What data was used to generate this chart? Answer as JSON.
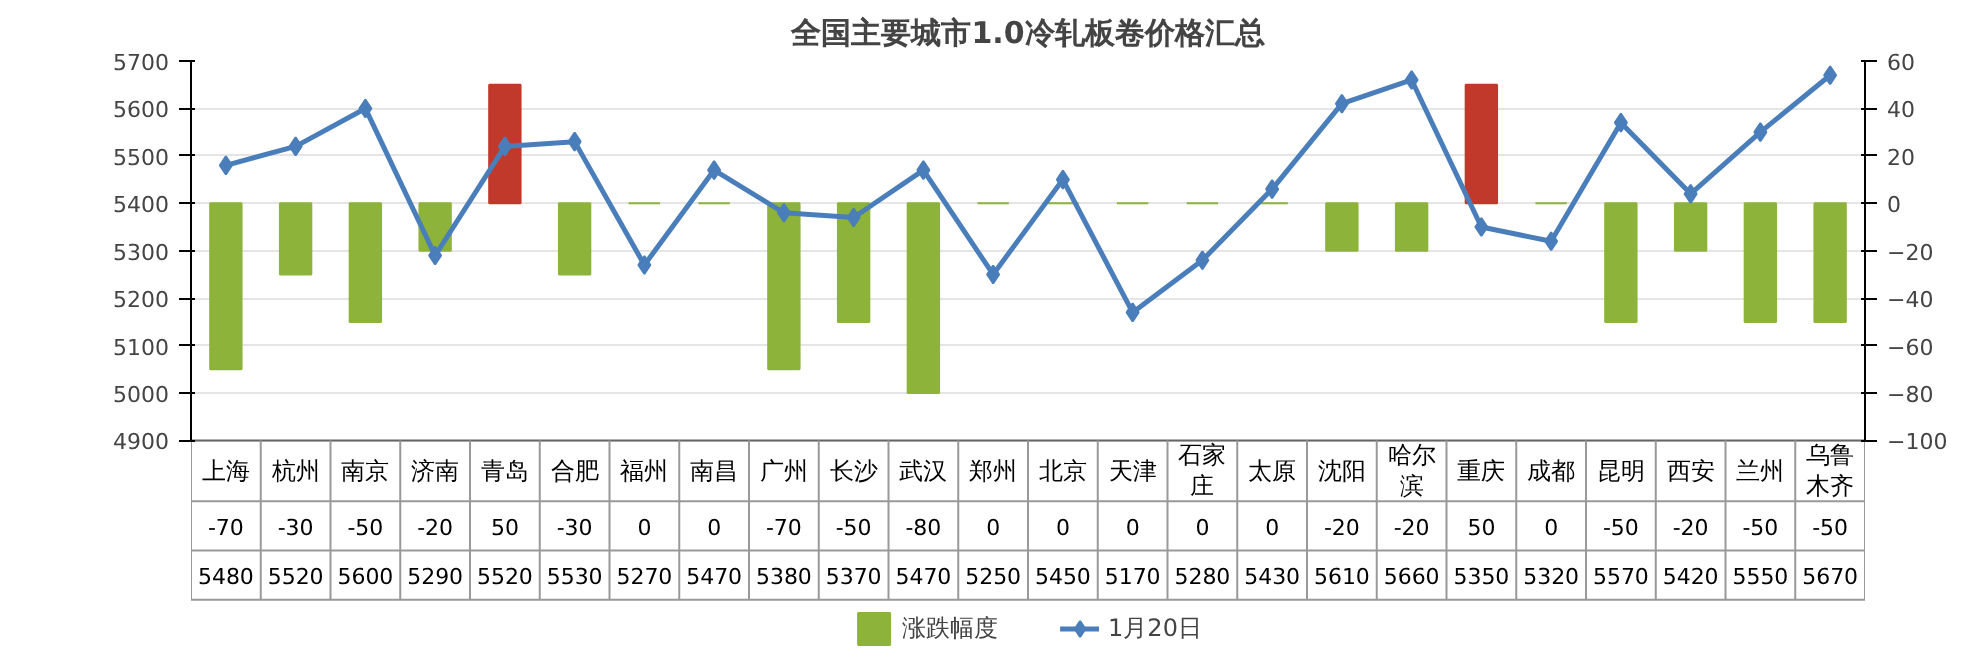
{
  "chart_data": {
    "type": "bar",
    "title": "全国主要城市1.0冷轧板卷价格汇总",
    "categories": [
      "上海",
      "杭州",
      "南京",
      "济南",
      "青岛",
      "合肥",
      "福州",
      "南昌",
      "广州",
      "长沙",
      "武汉",
      "郑州",
      "北京",
      "天津",
      "石家庄",
      "太原",
      "沈阳",
      "哈尔滨",
      "重庆",
      "成都",
      "昆明",
      "西安",
      "兰州",
      "乌鲁木齐"
    ],
    "series": [
      {
        "name": "涨跌幅度",
        "axis": "y2",
        "colors": [
          "#8db33a",
          "#8db33a",
          "#8db33a",
          "#8db33a",
          "#c0392b",
          "#8db33a",
          "#8db33a",
          "#8db33a",
          "#8db33a",
          "#8db33a",
          "#8db33a",
          "#8db33a",
          "#8db33a",
          "#8db33a",
          "#8db33a",
          "#8db33a",
          "#8db33a",
          "#8db33a",
          "#c0392b",
          "#8db33a",
          "#8db33a",
          "#8db33a",
          "#8db33a",
          "#8db33a"
        ],
        "values": [
          -70,
          -30,
          -50,
          -20,
          50,
          -30,
          0,
          0,
          -70,
          -50,
          -80,
          0,
          0,
          0,
          0,
          0,
          -20,
          -20,
          50,
          0,
          -50,
          -20,
          -50,
          -50
        ]
      },
      {
        "name": "1月20日",
        "type": "line",
        "color": "#4a7ebb",
        "values": [
          5480,
          5520,
          5600,
          5290,
          5520,
          5530,
          5270,
          5470,
          5380,
          5370,
          5470,
          5250,
          5450,
          5170,
          5280,
          5430,
          5610,
          5660,
          5350,
          5320,
          5570,
          5420,
          5550,
          5670
        ]
      }
    ],
    "ylim": [
      4900,
      5700
    ],
    "yticks": [
      4900,
      5000,
      5100,
      5200,
      5300,
      5400,
      5500,
      5600,
      5700
    ],
    "y2lim": [
      -100,
      60
    ],
    "y2ticks": [
      -100,
      -80,
      -60,
      -40,
      -20,
      0,
      20,
      40,
      60
    ],
    "grid": "y",
    "legend": "bottom",
    "marker": "diamond",
    "data_labels": true
  }
}
